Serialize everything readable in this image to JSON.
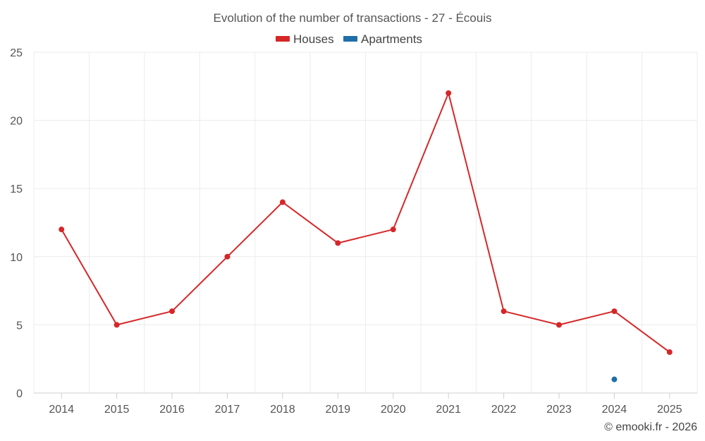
{
  "chart_data": {
    "type": "line",
    "title": "Evolution of the number of transactions - 27 - Écouis",
    "xlabel": "",
    "ylabel": "",
    "categories": [
      "2014",
      "2015",
      "2016",
      "2017",
      "2018",
      "2019",
      "2020",
      "2021",
      "2022",
      "2023",
      "2024",
      "2025"
    ],
    "ylim": [
      0,
      25
    ],
    "yticks": [
      0,
      5,
      10,
      15,
      20,
      25
    ],
    "grid": true,
    "legend_position": "top-center",
    "series": [
      {
        "name": "Houses",
        "color": "#d62728",
        "values": [
          12,
          5,
          6,
          10,
          14,
          11,
          12,
          22,
          6,
          5,
          6,
          3
        ]
      },
      {
        "name": "Apartments",
        "color": "#1f6fa8",
        "values": [
          null,
          null,
          null,
          null,
          null,
          null,
          null,
          null,
          null,
          null,
          1,
          null
        ]
      }
    ]
  },
  "credit": "© emooki.fr - 2026"
}
